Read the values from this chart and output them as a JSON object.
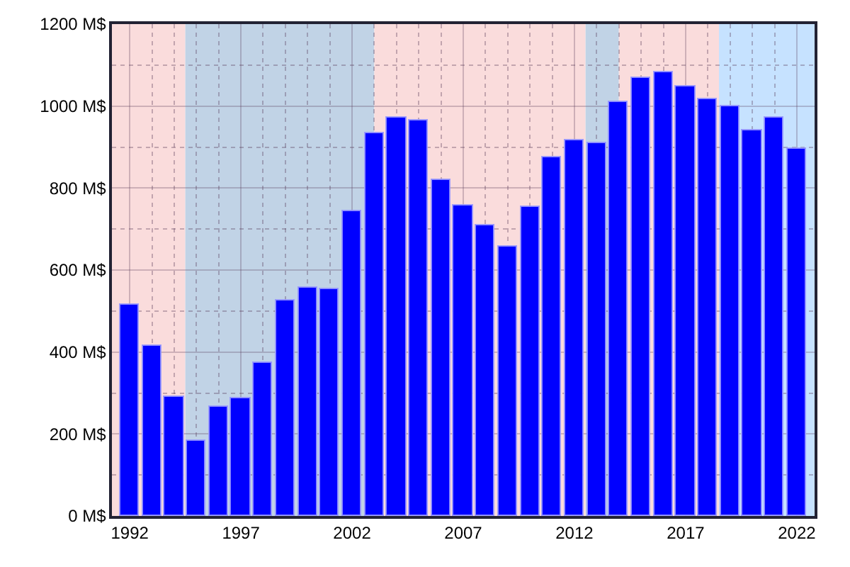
{
  "chart_data": {
    "type": "bar",
    "x": [
      1992,
      1993,
      1994,
      1995,
      1996,
      1997,
      1998,
      1999,
      2000,
      2001,
      2002,
      2003,
      2004,
      2005,
      2006,
      2007,
      2008,
      2009,
      2010,
      2011,
      2012,
      2013,
      2014,
      2015,
      2016,
      2017,
      2018,
      2019,
      2020,
      2021,
      2022
    ],
    "values": [
      515,
      414,
      290,
      185,
      266,
      286,
      374,
      525,
      556,
      555,
      742,
      935,
      973,
      965,
      820,
      759,
      708,
      656,
      755,
      874,
      915,
      909,
      1011,
      1070,
      1084,
      1047,
      1016,
      998,
      940,
      972,
      896
    ],
    "color": "#0000ff",
    "xlim": [
      1991.2,
      2022.8
    ],
    "xticks": [
      1992,
      {
        "value": 1993,
        "label": null
      },
      {
        "value": 1994,
        "label": null
      },
      {
        "value": 1995,
        "label": null
      },
      {
        "value": 1996,
        "label": null
      },
      1997,
      {
        "value": 1998,
        "label": null
      },
      {
        "value": 1999,
        "label": null
      },
      {
        "value": 2000,
        "label": null
      },
      {
        "value": 2001,
        "label": null
      },
      2002,
      {
        "value": 2003,
        "label": null
      },
      {
        "value": 2004,
        "label": null
      },
      {
        "value": 2005,
        "label": null
      },
      {
        "value": 2006,
        "label": null
      },
      2007,
      {
        "value": 2008,
        "label": null
      },
      {
        "value": 2009,
        "label": null
      },
      {
        "value": 2010,
        "label": null
      },
      {
        "value": 2011,
        "label": null
      },
      2012,
      {
        "value": 2013,
        "label": null
      },
      {
        "value": 2014,
        "label": null
      },
      {
        "value": 2015,
        "label": null
      },
      {
        "value": 2016,
        "label": null
      },
      2017,
      {
        "value": 2018,
        "label": null
      },
      {
        "value": 2019,
        "label": null
      },
      {
        "value": 2020,
        "label": null
      },
      {
        "value": 2021,
        "label": null
      },
      2022
    ],
    "ylim": [
      0,
      1200
    ],
    "yticks": [
      {
        "value": 0,
        "label": "0 M$"
      },
      {
        "value": 100,
        "label": null
      },
      {
        "value": 200,
        "label": "200 M$"
      },
      {
        "value": 300,
        "label": null
      },
      {
        "value": 400,
        "label": "400 M$"
      },
      {
        "value": 500,
        "label": null
      },
      {
        "value": 600,
        "label": "600 M$"
      },
      {
        "value": 700,
        "label": null
      },
      {
        "value": 800,
        "label": "800 M$"
      },
      {
        "value": 900,
        "label": null
      },
      {
        "value": 1000,
        "label": "1000 M$"
      },
      {
        "value": 1100,
        "label": null
      },
      {
        "value": 1200,
        "label": "1200 M$"
      }
    ],
    "bands": [
      {
        "axis": "x",
        "from": 1991.2,
        "to": 1994.5,
        "color": "#fadcdc"
      },
      {
        "axis": "x",
        "from": 1994.5,
        "to": 2003,
        "color": "#c1d3e6"
      },
      {
        "axis": "x",
        "from": 2003,
        "to": 2012.5,
        "color": "#fadcdc"
      },
      {
        "axis": "x",
        "from": 2012.5,
        "to": 2014,
        "color": "#c1d3e6"
      },
      {
        "axis": "x",
        "from": 2014,
        "to": 2018.5,
        "color": "#fadcdc"
      },
      {
        "axis": "x",
        "from": 2018.5,
        "to": 2022.8,
        "color": "#c6e2ff"
      }
    ],
    "grid": true
  }
}
